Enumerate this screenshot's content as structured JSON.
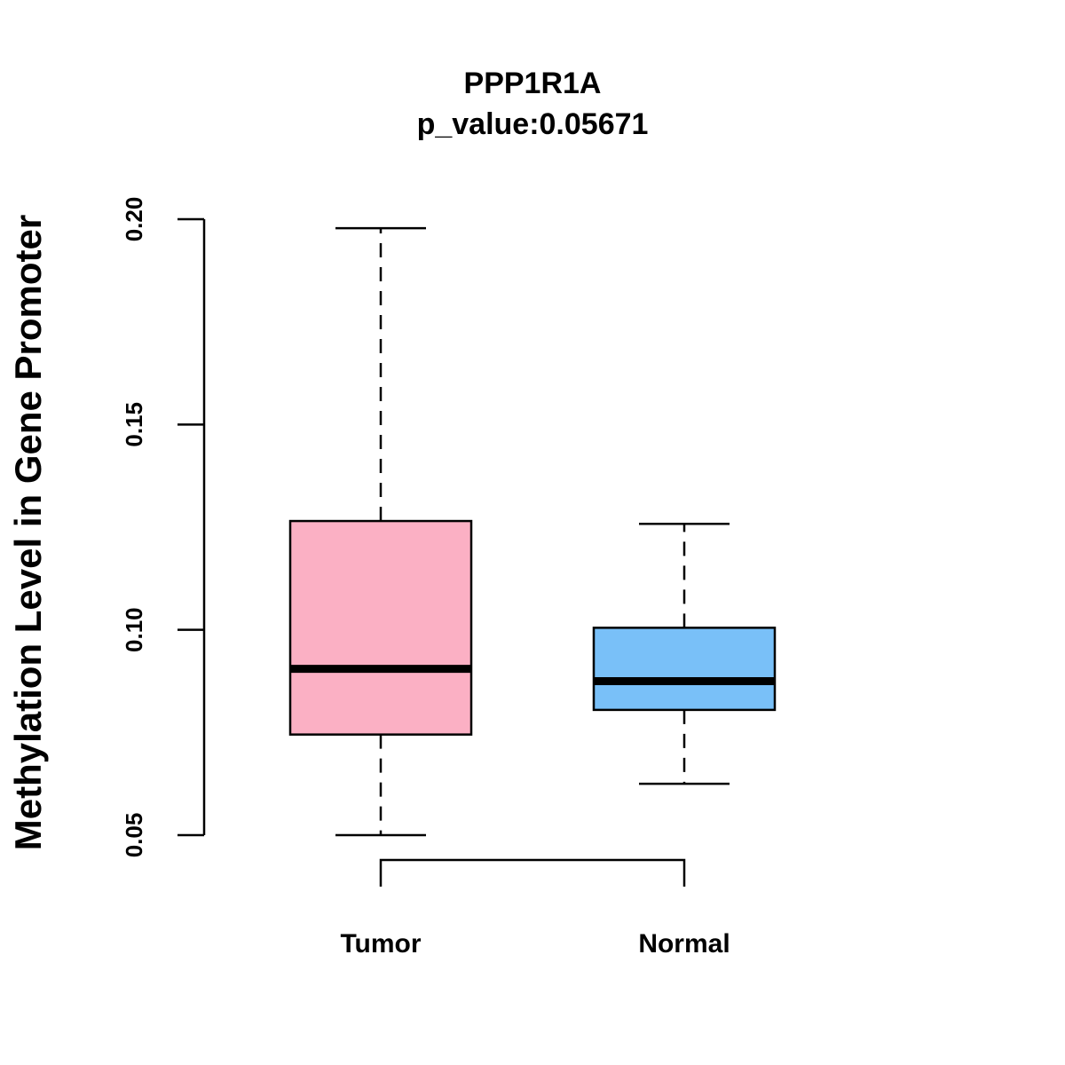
{
  "chart_data": {
    "type": "box",
    "title": "PPP1R1A",
    "subtitle": "p_value:0.05671",
    "xlabel": "",
    "ylabel": "Methylation Level in Gene Promoter",
    "ylim": [
      0.05,
      0.2
    ],
    "yticks": [
      0.05,
      0.1,
      0.15,
      0.2
    ],
    "ytick_labels": [
      "0.05",
      "0.10",
      "0.15",
      "0.20"
    ],
    "categories": [
      "Tumor",
      "Normal"
    ],
    "series": [
      {
        "name": "Tumor",
        "min": 0.05,
        "q1": 0.0745,
        "median": 0.0905,
        "q3": 0.1265,
        "max": 0.1978,
        "color": "#fbb0c4"
      },
      {
        "name": "Normal",
        "min": 0.0625,
        "q1": 0.0805,
        "median": 0.0875,
        "q3": 0.1005,
        "max": 0.1258,
        "color": "#79c0f8"
      }
    ],
    "comparison_bracket": [
      "Tumor",
      "Normal"
    ],
    "grid": false,
    "legend": "none"
  }
}
